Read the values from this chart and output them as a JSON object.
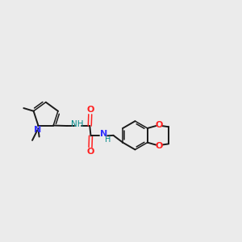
{
  "bg_color": "#ebebeb",
  "bond_color": "#1a1a1a",
  "N_color": "#3333ff",
  "O_color": "#ff2020",
  "NH_color": "#008888",
  "figsize": [
    3.0,
    3.0
  ],
  "dpi": 100,
  "xlim": [
    0,
    12
  ],
  "ylim": [
    0,
    12
  ]
}
